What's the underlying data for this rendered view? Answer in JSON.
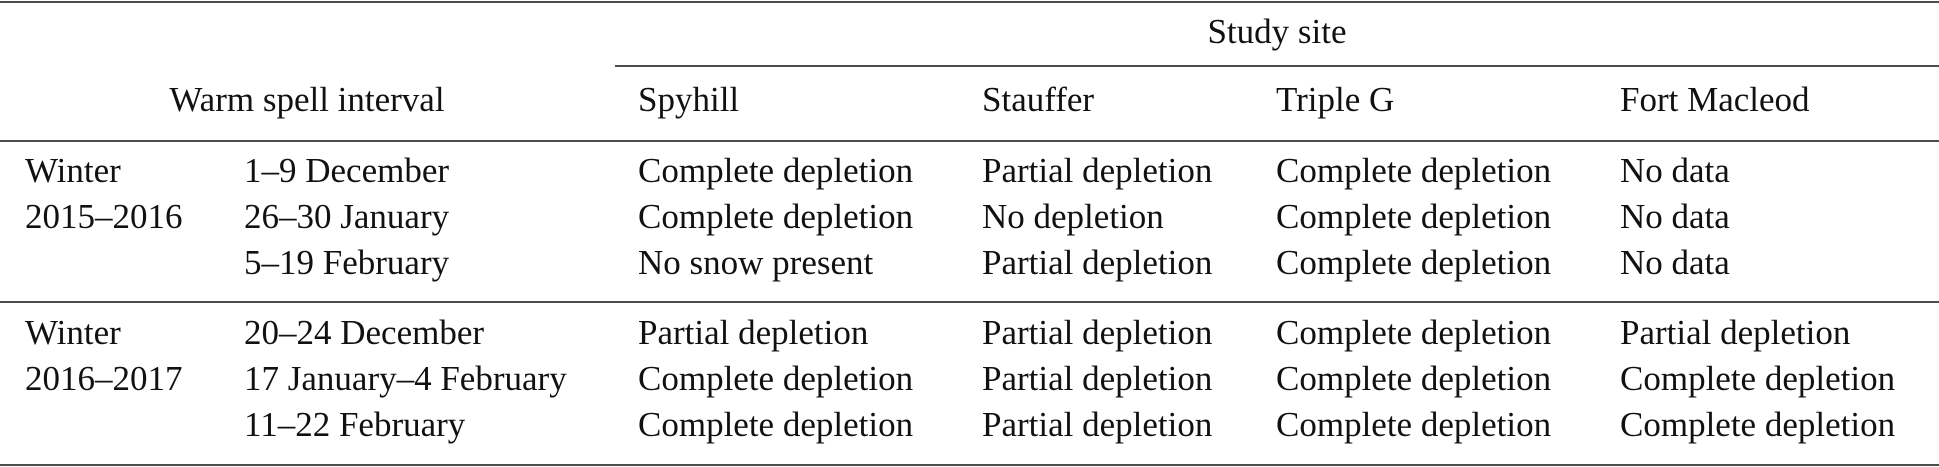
{
  "header": {
    "group_label": "Study site",
    "row_label": "Warm spell interval",
    "sites": [
      "Spyhill",
      "Stauffer",
      "Triple G",
      "Fort Macleod"
    ]
  },
  "groups": [
    {
      "label": [
        "Winter",
        "2015–2016"
      ],
      "rows": [
        {
          "interval": "1–9 December",
          "values": [
            "Complete depletion",
            "Partial depletion",
            "Complete depletion",
            "No data"
          ]
        },
        {
          "interval": "26–30 January",
          "values": [
            "Complete depletion",
            "No depletion",
            "Complete depletion",
            "No data"
          ]
        },
        {
          "interval": "5–19 February",
          "values": [
            "No snow present",
            "Partial depletion",
            "Complete depletion",
            "No data"
          ]
        }
      ]
    },
    {
      "label": [
        "Winter",
        "2016–2017"
      ],
      "rows": [
        {
          "interval": "20–24 December",
          "values": [
            "Partial depletion",
            "Partial depletion",
            "Complete depletion",
            "Partial depletion"
          ]
        },
        {
          "interval": "17 January–4 February",
          "values": [
            "Complete depletion",
            "Partial depletion",
            "Complete depletion",
            "Complete depletion"
          ]
        },
        {
          "interval": "11–22 February",
          "values": [
            "Complete depletion",
            "Partial depletion",
            "Complete depletion",
            "Complete depletion"
          ]
        }
      ]
    }
  ]
}
